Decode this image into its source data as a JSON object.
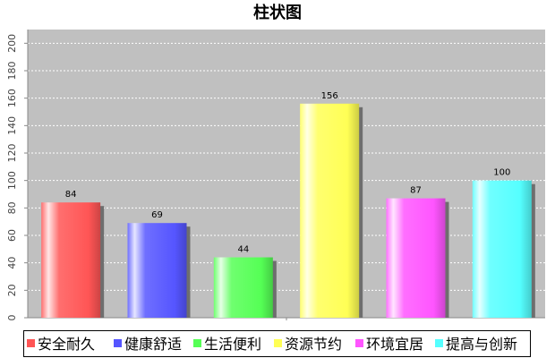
{
  "chart_data": {
    "type": "bar",
    "title": "柱状图",
    "xlabel": "",
    "ylabel": "",
    "categories": [
      "安全耐久",
      "健康舒适",
      "生活便利",
      "资源节约",
      "环境宜居",
      "提高与创新"
    ],
    "values": [
      84,
      69,
      44,
      156,
      87,
      100
    ],
    "colors": [
      "#ff5555",
      "#5555ff",
      "#55ff55",
      "#ffff55",
      "#ff55ff",
      "#55ffff"
    ],
    "ylim": [
      0,
      210
    ],
    "yticks": [
      0,
      20,
      40,
      60,
      80,
      100,
      120,
      140,
      160,
      180,
      200
    ],
    "grid": true,
    "legend_position": "bottom",
    "plot_background": "#c0c0c0"
  }
}
